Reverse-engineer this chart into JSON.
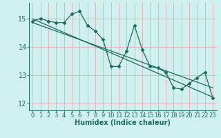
{
  "xlabel": "Humidex (Indice chaleur)",
  "background_color": "#cff0ee",
  "grid_color": "#e8aaaa",
  "line_color": "#1a6b5e",
  "xlim": [
    -0.5,
    23.5
  ],
  "ylim": [
    11.75,
    15.55
  ],
  "yticks": [
    12,
    13,
    14,
    15
  ],
  "xticks": [
    0,
    1,
    2,
    3,
    4,
    5,
    6,
    7,
    8,
    9,
    10,
    11,
    12,
    13,
    14,
    15,
    16,
    17,
    18,
    19,
    20,
    21,
    22,
    23
  ],
  "series1_x": [
    0,
    1,
    2,
    3,
    4,
    5,
    6,
    7,
    8,
    9,
    10,
    11,
    12,
    13,
    14,
    15,
    16,
    17,
    18,
    19,
    20,
    21,
    22,
    23
  ],
  "series1_y": [
    14.9,
    15.0,
    14.9,
    14.85,
    14.85,
    15.15,
    15.25,
    14.75,
    14.55,
    14.25,
    13.3,
    13.3,
    13.85,
    14.75,
    13.9,
    13.3,
    13.25,
    13.1,
    12.55,
    12.5,
    12.7,
    12.9,
    13.1,
    12.2
  ],
  "trend1_x": [
    0,
    23
  ],
  "trend1_y": [
    14.98,
    12.22
  ],
  "trend2_x": [
    0,
    23
  ],
  "trend2_y": [
    14.85,
    12.55
  ],
  "marker": "D",
  "markersize": 2.5,
  "linewidth": 0.9,
  "trend_linewidth": 0.9,
  "xlabel_fontsize": 7,
  "tick_fontsize": 6
}
